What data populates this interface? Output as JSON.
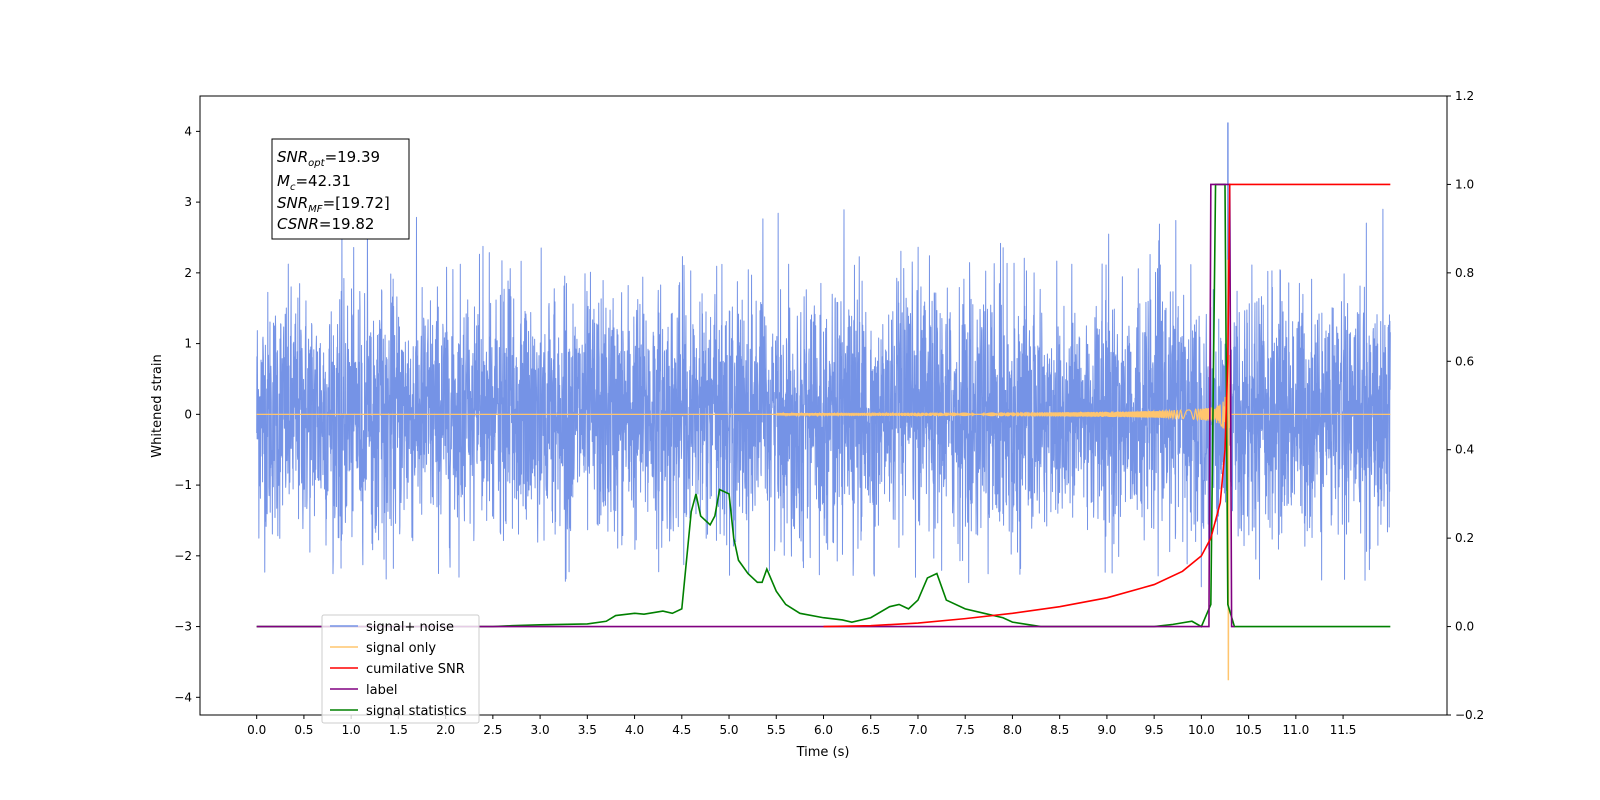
{
  "chart_data": {
    "type": "line",
    "xlabel": "Time (s)",
    "ylabel_left": "Whitened strain",
    "ylabel_right": "",
    "xlim": [
      -0.6,
      12.6
    ],
    "ylim_left": [
      -4.25,
      4.5
    ],
    "ylim_right": [
      -0.2,
      1.2
    ],
    "x_ticks": [
      "0.0",
      "0.5",
      "1.0",
      "1.5",
      "2.0",
      "2.5",
      "3.0",
      "3.5",
      "4.0",
      "4.5",
      "5.0",
      "5.5",
      "6.0",
      "6.5",
      "7.0",
      "7.5",
      "8.0",
      "8.5",
      "9.0",
      "9.5",
      "10.0",
      "10.5",
      "11.0",
      "11.5"
    ],
    "y_ticks_left": [
      "4",
      "3",
      "2",
      "1",
      "0",
      "−1",
      "−2",
      "−3",
      "−4"
    ],
    "y_ticks_right": [
      "1.2",
      "1.0",
      "0.8",
      "0.6",
      "0.4",
      "0.2",
      "0.0",
      "−0.2"
    ],
    "annotation": {
      "snr_opt": "=19.39",
      "mc": "=42.31",
      "snr_mf": "=[19.72]",
      "csnr": "=19.82"
    },
    "legend": {
      "position": "lower-left",
      "entries": [
        "signal+ noise",
        "signal only",
        "cumilative SNR",
        "label",
        "signal statistics"
      ]
    },
    "series": [
      {
        "name": "signal+ noise",
        "color": "#7593e6",
        "axis": "left",
        "description_range": [
          0.0,
          12.0
        ],
        "envelope": {
          "min": -2.4,
          "max": 2.9
        },
        "peak": {
          "x": 10.28,
          "max": 4.12,
          "min": -2.6
        }
      },
      {
        "name": "signal only",
        "color": "#ffc56e",
        "axis": "left",
        "chirp_end": 10.28,
        "peak": {
          "max": 3.7,
          "min": -3.75
        }
      },
      {
        "name": "cumilative SNR",
        "color": "#ff0000",
        "axis": "right",
        "points": [
          [
            6.0,
            0.0
          ],
          [
            6.5,
            0.002
          ],
          [
            7.0,
            0.008
          ],
          [
            7.5,
            0.018
          ],
          [
            8.0,
            0.03
          ],
          [
            8.5,
            0.045
          ],
          [
            9.0,
            0.065
          ],
          [
            9.5,
            0.095
          ],
          [
            9.8,
            0.125
          ],
          [
            10.0,
            0.16
          ],
          [
            10.1,
            0.2
          ],
          [
            10.2,
            0.28
          ],
          [
            10.25,
            0.4
          ],
          [
            10.28,
            0.6
          ],
          [
            10.3,
            1.0
          ],
          [
            12.0,
            1.0
          ]
        ]
      },
      {
        "name": "label",
        "color": "#800080",
        "axis": "right",
        "points": [
          [
            0.0,
            0.0
          ],
          [
            10.08,
            0.0
          ],
          [
            10.1,
            1.0
          ],
          [
            10.3,
            1.0
          ],
          [
            10.32,
            0.0
          ],
          [
            10.35,
            0.0
          ]
        ]
      },
      {
        "name": "signal statistics",
        "color": "#008000",
        "axis": "right",
        "points": [
          [
            0.0,
            0.0
          ],
          [
            2.5,
            0.0
          ],
          [
            2.7,
            0.002
          ],
          [
            3.0,
            0.004
          ],
          [
            3.5,
            0.006
          ],
          [
            3.7,
            0.012
          ],
          [
            3.8,
            0.025
          ],
          [
            4.0,
            0.03
          ],
          [
            4.1,
            0.028
          ],
          [
            4.3,
            0.035
          ],
          [
            4.4,
            0.03
          ],
          [
            4.5,
            0.04
          ],
          [
            4.55,
            0.15
          ],
          [
            4.6,
            0.26
          ],
          [
            4.65,
            0.3
          ],
          [
            4.7,
            0.25
          ],
          [
            4.8,
            0.23
          ],
          [
            4.85,
            0.25
          ],
          [
            4.9,
            0.31
          ],
          [
            5.0,
            0.3
          ],
          [
            5.05,
            0.2
          ],
          [
            5.1,
            0.15
          ],
          [
            5.2,
            0.12
          ],
          [
            5.3,
            0.1
          ],
          [
            5.35,
            0.1
          ],
          [
            5.4,
            0.13
          ],
          [
            5.5,
            0.08
          ],
          [
            5.6,
            0.05
          ],
          [
            5.75,
            0.03
          ],
          [
            6.0,
            0.02
          ],
          [
            6.2,
            0.015
          ],
          [
            6.3,
            0.01
          ],
          [
            6.5,
            0.02
          ],
          [
            6.7,
            0.045
          ],
          [
            6.8,
            0.05
          ],
          [
            6.9,
            0.04
          ],
          [
            7.0,
            0.06
          ],
          [
            7.1,
            0.11
          ],
          [
            7.2,
            0.12
          ],
          [
            7.3,
            0.06
          ],
          [
            7.5,
            0.04
          ],
          [
            7.7,
            0.03
          ],
          [
            7.9,
            0.02
          ],
          [
            8.0,
            0.01
          ],
          [
            8.3,
            0.0
          ],
          [
            9.5,
            0.0
          ],
          [
            9.7,
            0.005
          ],
          [
            9.9,
            0.012
          ],
          [
            10.0,
            0.0
          ],
          [
            10.1,
            0.05
          ],
          [
            10.15,
            1.0
          ],
          [
            10.25,
            1.0
          ],
          [
            10.28,
            0.05
          ],
          [
            10.35,
            0.0
          ],
          [
            12.0,
            0.0
          ]
        ]
      }
    ]
  }
}
